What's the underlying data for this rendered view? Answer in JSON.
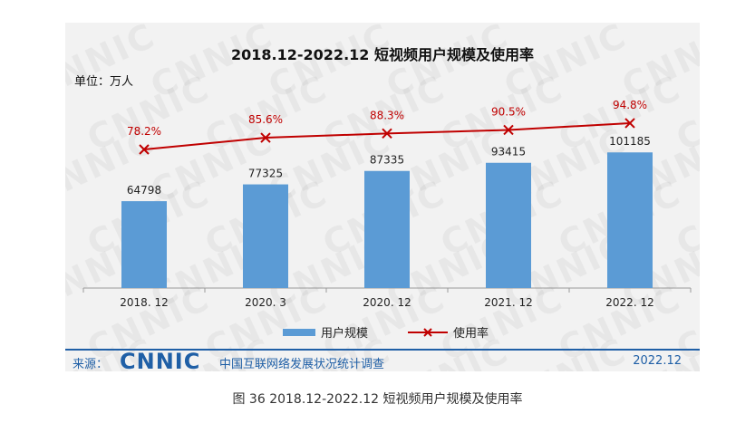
{
  "chart_data": {
    "type": "bar",
    "title": "2018.12-2022.12 短视频用户规模及使用率",
    "unit_label": "单位：万人",
    "categories": [
      "2018. 12",
      "2020. 3",
      "2020. 12",
      "2021. 12",
      "2022. 12"
    ],
    "series": [
      {
        "name": "用户规模",
        "type": "bar",
        "color": "#5b9bd5",
        "values": [
          64798,
          77325,
          87335,
          93415,
          101185
        ]
      },
      {
        "name": "使用率",
        "type": "line",
        "color": "#c00000",
        "values": [
          78.2,
          85.6,
          88.3,
          90.5,
          94.8
        ],
        "labels": [
          "78.2%",
          "85.6%",
          "88.3%",
          "90.5%",
          "94.8%"
        ]
      }
    ],
    "legend": "bottom",
    "grid": false
  },
  "source": {
    "label": "来源：",
    "logo": "CNNIC",
    "org": "中国互联网络发展状况统计调查",
    "date": "2022.12"
  },
  "caption": "图 36 2018.12-2022.12 短视频用户规模及使用率",
  "watermark": "CNNIC"
}
